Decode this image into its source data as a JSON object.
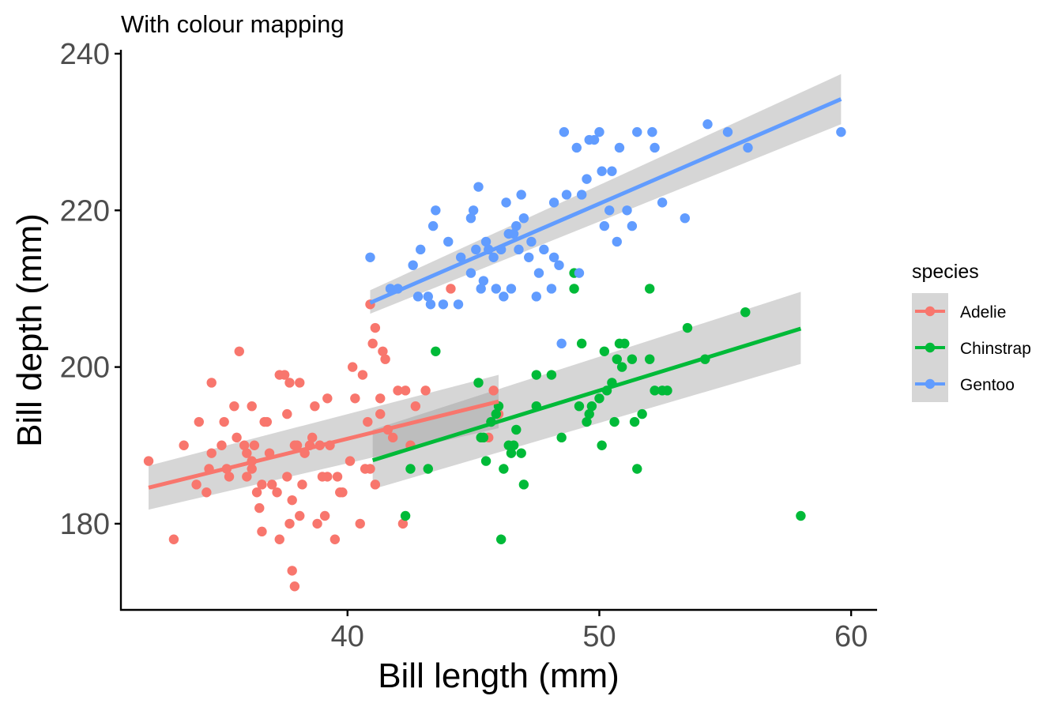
{
  "chart_data": {
    "type": "scatter",
    "title": "With colour mapping",
    "xlabel": "Bill length (mm)",
    "ylabel": "Bill depth (mm)",
    "xlim": [
      31,
      61
    ],
    "ylim": [
      169,
      240.5
    ],
    "x_ticks": [
      40,
      50,
      60
    ],
    "y_ticks": [
      180,
      200,
      220,
      240
    ],
    "grid": false,
    "legend_position": "right",
    "legend": {
      "title": "species",
      "entries": [
        "Adelie",
        "Chinstrap",
        "Gentoo"
      ]
    },
    "colors": {
      "Adelie": "#F8766D",
      "Chinstrap": "#00BA38",
      "Gentoo": "#619CFF",
      "band": "#999999",
      "axis": "#000000",
      "tick_label": "#4D4D4D"
    },
    "series": [
      {
        "name": "Adelie",
        "trend": {
          "x": [
            32.1,
            46.0
          ],
          "y": [
            184.6,
            195.6
          ],
          "band_lower": [
            181.8,
            192.2
          ],
          "band_upper": [
            187.4,
            199.0
          ]
        },
        "points": [
          [
            32.1,
            188
          ],
          [
            33.1,
            178
          ],
          [
            33.5,
            190
          ],
          [
            34.0,
            185
          ],
          [
            34.1,
            193
          ],
          [
            34.4,
            184
          ],
          [
            34.5,
            187
          ],
          [
            34.6,
            198
          ],
          [
            34.6,
            189
          ],
          [
            35.0,
            190
          ],
          [
            35.1,
            193
          ],
          [
            35.2,
            187
          ],
          [
            35.3,
            186
          ],
          [
            35.5,
            195
          ],
          [
            35.6,
            191
          ],
          [
            35.7,
            202
          ],
          [
            35.9,
            190
          ],
          [
            36.0,
            189
          ],
          [
            36.0,
            186
          ],
          [
            36.2,
            195
          ],
          [
            36.2,
            187
          ],
          [
            36.3,
            190
          ],
          [
            36.4,
            184
          ],
          [
            36.5,
            182
          ],
          [
            36.6,
            185
          ],
          [
            36.6,
            179
          ],
          [
            36.7,
            193
          ],
          [
            36.8,
            193
          ],
          [
            36.9,
            189
          ],
          [
            37.0,
            185
          ],
          [
            37.2,
            184
          ],
          [
            37.3,
            178
          ],
          [
            37.3,
            199
          ],
          [
            37.5,
            199
          ],
          [
            37.6,
            194
          ],
          [
            37.6,
            186
          ],
          [
            37.7,
            198
          ],
          [
            37.7,
            180
          ],
          [
            37.8,
            174
          ],
          [
            37.8,
            183
          ],
          [
            37.9,
            172
          ],
          [
            37.9,
            190
          ],
          [
            38.1,
            181
          ],
          [
            38.1,
            198
          ],
          [
            38.2,
            185
          ],
          [
            38.3,
            189
          ],
          [
            38.5,
            190
          ],
          [
            38.6,
            191
          ],
          [
            38.7,
            195
          ],
          [
            38.8,
            180
          ],
          [
            38.9,
            190
          ],
          [
            39.0,
            186
          ],
          [
            39.1,
            181
          ],
          [
            39.2,
            196
          ],
          [
            39.3,
            190
          ],
          [
            39.5,
            178
          ],
          [
            39.6,
            186
          ],
          [
            39.7,
            184
          ],
          [
            39.8,
            184
          ],
          [
            40.1,
            188
          ],
          [
            40.2,
            200
          ],
          [
            40.3,
            196
          ],
          [
            40.5,
            180
          ],
          [
            40.6,
            199
          ],
          [
            40.7,
            187
          ],
          [
            40.8,
            193
          ],
          [
            40.9,
            187
          ],
          [
            41.0,
            203
          ],
          [
            41.1,
            205
          ],
          [
            41.3,
            194
          ],
          [
            41.4,
            202
          ],
          [
            41.5,
            201
          ],
          [
            41.6,
            192
          ],
          [
            42.0,
            197
          ],
          [
            42.2,
            180
          ],
          [
            42.3,
            197
          ],
          [
            42.5,
            190
          ],
          [
            42.7,
            195
          ],
          [
            43.1,
            197
          ],
          [
            44.1,
            210
          ],
          [
            45.6,
            191
          ],
          [
            45.8,
            197
          ],
          [
            46.0,
            194
          ],
          [
            40.9,
            208
          ],
          [
            41.1,
            185
          ],
          [
            41.3,
            196
          ],
          [
            41.8,
            191
          ],
          [
            39.2,
            186
          ],
          [
            38.0,
            190
          ],
          [
            36.2,
            188
          ]
        ]
      },
      {
        "name": "Chinstrap",
        "trend": {
          "x": [
            41.0,
            58.0
          ],
          "y": [
            188.1,
            204.9
          ],
          "band_lower": [
            184.4,
            200.4
          ],
          "band_upper": [
            192.0,
            209.6
          ]
        },
        "points": [
          [
            42.3,
            181
          ],
          [
            42.5,
            187
          ],
          [
            43.2,
            187
          ],
          [
            43.5,
            202
          ],
          [
            45.2,
            198
          ],
          [
            45.3,
            191
          ],
          [
            45.5,
            188
          ],
          [
            45.7,
            193
          ],
          [
            45.9,
            194
          ],
          [
            46.0,
            195
          ],
          [
            46.1,
            178
          ],
          [
            46.2,
            187
          ],
          [
            46.4,
            190
          ],
          [
            46.5,
            189
          ],
          [
            46.7,
            192
          ],
          [
            46.9,
            189
          ],
          [
            47.0,
            185
          ],
          [
            47.5,
            195
          ],
          [
            47.5,
            199
          ],
          [
            48.1,
            199
          ],
          [
            48.5,
            191
          ],
          [
            49.0,
            212
          ],
          [
            49.0,
            210
          ],
          [
            49.2,
            195
          ],
          [
            49.3,
            203
          ],
          [
            49.5,
            193
          ],
          [
            49.7,
            195
          ],
          [
            50.0,
            196
          ],
          [
            50.1,
            190
          ],
          [
            50.2,
            202
          ],
          [
            50.3,
            197
          ],
          [
            50.5,
            198
          ],
          [
            50.6,
            193
          ],
          [
            50.7,
            201
          ],
          [
            50.8,
            203
          ],
          [
            51.0,
            203
          ],
          [
            51.3,
            201
          ],
          [
            51.4,
            193
          ],
          [
            51.5,
            187
          ],
          [
            51.7,
            194
          ],
          [
            52.0,
            201
          ],
          [
            52.0,
            210
          ],
          [
            52.2,
            197
          ],
          [
            52.5,
            197
          ],
          [
            52.7,
            197
          ],
          [
            53.5,
            205
          ],
          [
            54.2,
            201
          ],
          [
            55.8,
            207
          ],
          [
            58.0,
            181
          ],
          [
            45.4,
            191
          ],
          [
            46.6,
            190
          ],
          [
            49.6,
            194
          ],
          [
            50.9,
            200
          ]
        ]
      },
      {
        "name": "Gentoo",
        "trend": {
          "x": [
            40.9,
            59.6
          ],
          "y": [
            208.2,
            234.2
          ],
          "band_lower": [
            206.8,
            231.0
          ],
          "band_upper": [
            209.8,
            237.4
          ]
        },
        "points": [
          [
            40.9,
            214
          ],
          [
            41.7,
            210
          ],
          [
            42.0,
            210
          ],
          [
            42.6,
            213
          ],
          [
            42.8,
            209
          ],
          [
            42.9,
            215
          ],
          [
            43.2,
            209
          ],
          [
            43.3,
            208
          ],
          [
            43.4,
            218
          ],
          [
            43.5,
            220
          ],
          [
            43.8,
            208
          ],
          [
            44.0,
            216
          ],
          [
            44.4,
            208
          ],
          [
            44.5,
            214
          ],
          [
            44.9,
            212
          ],
          [
            45.0,
            220
          ],
          [
            45.1,
            215
          ],
          [
            45.2,
            223
          ],
          [
            45.3,
            210
          ],
          [
            45.4,
            211
          ],
          [
            45.5,
            216
          ],
          [
            45.6,
            215
          ],
          [
            45.8,
            214
          ],
          [
            46.1,
            215
          ],
          [
            46.2,
            209
          ],
          [
            46.3,
            221
          ],
          [
            46.4,
            217
          ],
          [
            46.5,
            210
          ],
          [
            46.6,
            217
          ],
          [
            46.8,
            215
          ],
          [
            46.9,
            222
          ],
          [
            47.2,
            214
          ],
          [
            47.3,
            216
          ],
          [
            47.5,
            209
          ],
          [
            47.6,
            212
          ],
          [
            47.8,
            215
          ],
          [
            48.1,
            210
          ],
          [
            48.2,
            221
          ],
          [
            48.4,
            213
          ],
          [
            48.5,
            203
          ],
          [
            48.6,
            230
          ],
          [
            48.7,
            222
          ],
          [
            49.1,
            228
          ],
          [
            49.2,
            212
          ],
          [
            49.5,
            224
          ],
          [
            49.6,
            229
          ],
          [
            49.8,
            229
          ],
          [
            50.0,
            230
          ],
          [
            50.1,
            225
          ],
          [
            50.2,
            218
          ],
          [
            50.4,
            220
          ],
          [
            50.5,
            225
          ],
          [
            50.7,
            216
          ],
          [
            50.8,
            228
          ],
          [
            51.1,
            220
          ],
          [
            51.3,
            218
          ],
          [
            51.5,
            230
          ],
          [
            52.1,
            230
          ],
          [
            52.2,
            228
          ],
          [
            52.5,
            221
          ],
          [
            53.4,
            219
          ],
          [
            54.3,
            231
          ],
          [
            55.1,
            230
          ],
          [
            55.9,
            228
          ],
          [
            59.6,
            230
          ],
          [
            47.0,
            219
          ],
          [
            48.2,
            214
          ],
          [
            45.9,
            210
          ],
          [
            44.9,
            219
          ],
          [
            46.7,
            218
          ],
          [
            49.3,
            222
          ]
        ]
      }
    ]
  }
}
